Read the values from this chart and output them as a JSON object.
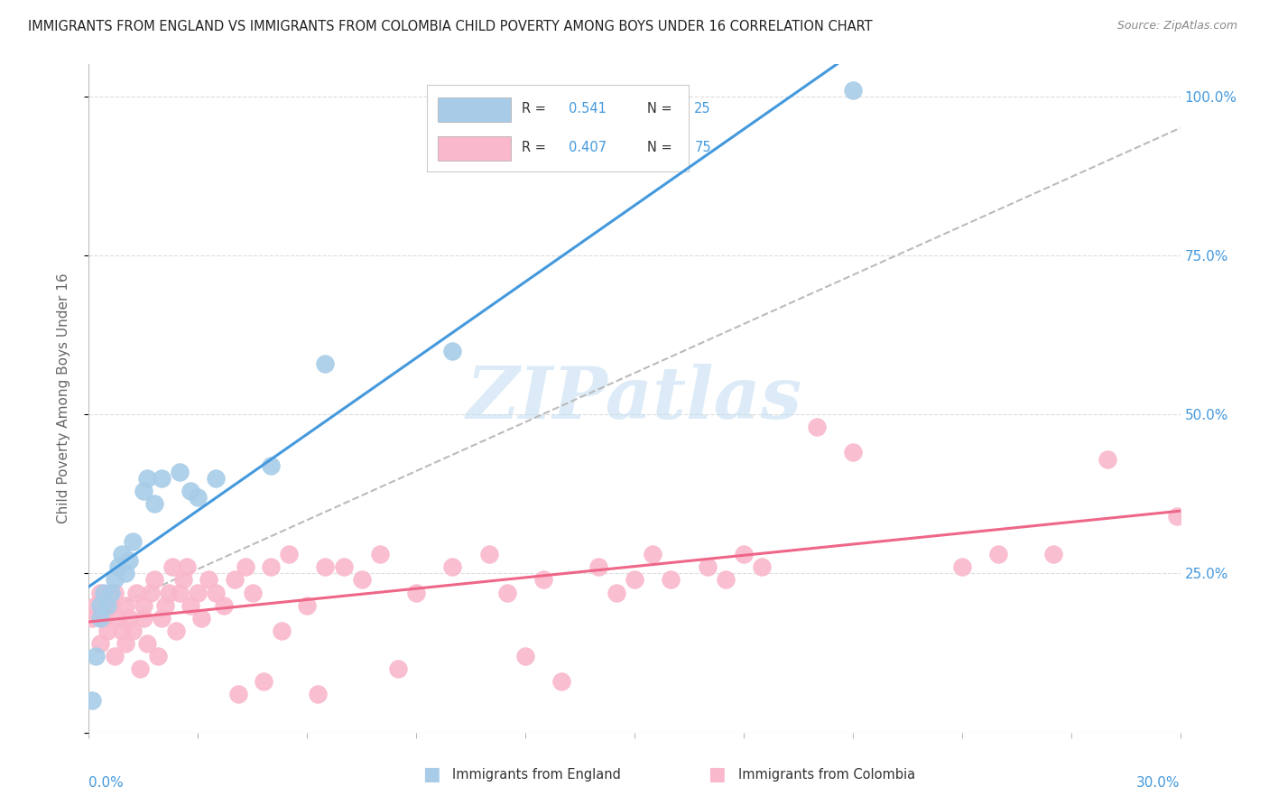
{
  "title": "IMMIGRANTS FROM ENGLAND VS IMMIGRANTS FROM COLOMBIA CHILD POVERTY AMONG BOYS UNDER 16 CORRELATION CHART",
  "source": "Source: ZipAtlas.com",
  "ylabel": "Child Poverty Among Boys Under 16",
  "england_R": "0.541",
  "england_N": "25",
  "colombia_R": "0.407",
  "colombia_N": "75",
  "england_color": "#a8cce8",
  "colombia_color": "#f9b8cb",
  "england_line_color": "#4499dd",
  "colombia_line_color": "#ee6688",
  "watermark_text": "ZIPatlas",
  "watermark_color": "#c5dff2",
  "xlim": [
    0.0,
    0.3
  ],
  "ylim": [
    0.0,
    1.05
  ],
  "background_color": "#ffffff",
  "title_color": "#222222",
  "axis_label_color": "#666666",
  "right_tick_color": "#4499dd",
  "grid_color": "#dddddd",
  "england_scatter_x": [
    0.001,
    0.002,
    0.003,
    0.003,
    0.004,
    0.005,
    0.006,
    0.007,
    0.008,
    0.009,
    0.01,
    0.011,
    0.012,
    0.015,
    0.016,
    0.018,
    0.02,
    0.025,
    0.028,
    0.03,
    0.035,
    0.05,
    0.065,
    0.1,
    0.21
  ],
  "england_scatter_y": [
    0.05,
    0.12,
    0.18,
    0.2,
    0.22,
    0.2,
    0.22,
    0.24,
    0.26,
    0.28,
    0.25,
    0.27,
    0.3,
    0.38,
    0.4,
    0.36,
    0.4,
    0.41,
    0.38,
    0.37,
    0.4,
    0.42,
    0.58,
    0.6,
    1.01
  ],
  "colombia_scatter_x": [
    0.001,
    0.002,
    0.003,
    0.003,
    0.004,
    0.005,
    0.006,
    0.007,
    0.007,
    0.008,
    0.009,
    0.01,
    0.01,
    0.011,
    0.012,
    0.013,
    0.014,
    0.015,
    0.015,
    0.016,
    0.017,
    0.018,
    0.019,
    0.02,
    0.021,
    0.022,
    0.023,
    0.024,
    0.025,
    0.026,
    0.027,
    0.028,
    0.03,
    0.031,
    0.033,
    0.035,
    0.037,
    0.04,
    0.041,
    0.043,
    0.045,
    0.048,
    0.05,
    0.053,
    0.055,
    0.06,
    0.063,
    0.065,
    0.07,
    0.075,
    0.08,
    0.085,
    0.09,
    0.1,
    0.11,
    0.115,
    0.12,
    0.125,
    0.13,
    0.14,
    0.145,
    0.15,
    0.155,
    0.16,
    0.17,
    0.175,
    0.18,
    0.185,
    0.2,
    0.21,
    0.24,
    0.25,
    0.265,
    0.28,
    0.299
  ],
  "colombia_scatter_y": [
    0.18,
    0.2,
    0.14,
    0.22,
    0.18,
    0.16,
    0.2,
    0.12,
    0.22,
    0.18,
    0.16,
    0.14,
    0.2,
    0.18,
    0.16,
    0.22,
    0.1,
    0.18,
    0.2,
    0.14,
    0.22,
    0.24,
    0.12,
    0.18,
    0.2,
    0.22,
    0.26,
    0.16,
    0.22,
    0.24,
    0.26,
    0.2,
    0.22,
    0.18,
    0.24,
    0.22,
    0.2,
    0.24,
    0.06,
    0.26,
    0.22,
    0.08,
    0.26,
    0.16,
    0.28,
    0.2,
    0.06,
    0.26,
    0.26,
    0.24,
    0.28,
    0.1,
    0.22,
    0.26,
    0.28,
    0.22,
    0.12,
    0.24,
    0.08,
    0.26,
    0.22,
    0.24,
    0.28,
    0.24,
    0.26,
    0.24,
    0.28,
    0.26,
    0.48,
    0.44,
    0.26,
    0.28,
    0.28,
    0.43,
    0.34
  ],
  "legend_box_color": "#ffffff",
  "legend_border_color": "#cccccc",
  "xtick_label_color": "#4499dd",
  "ref_line_color": "#bbbbbb"
}
